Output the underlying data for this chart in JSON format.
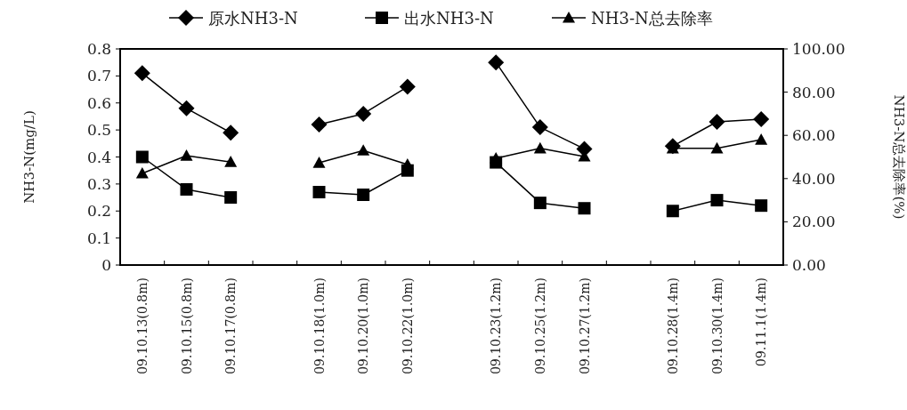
{
  "chart_data": {
    "type": "line",
    "categories": [
      "09.10.13(0.8m)",
      "09.10.15(0.8m)",
      "09.10.17(0.8m)",
      null,
      "09.10.18(1.0m)",
      "09.10.20(1.0m)",
      "09.10.22(1.0m)",
      null,
      "09.10.23(1.2m)",
      "09.10.25(1.2m)",
      "09.10.27(1.2m)",
      null,
      "09.10.28(1.4m)",
      "09.10.30(1.4m)",
      "09.11.1(1.4m)"
    ],
    "series": [
      {
        "name": "原水NH3-N",
        "color": "#000000",
        "marker": "diamond",
        "values": [
          0.71,
          0.58,
          0.49,
          null,
          0.52,
          0.56,
          0.66,
          null,
          0.75,
          0.51,
          0.43,
          null,
          0.44,
          0.53,
          0.54
        ]
      },
      {
        "name": "出水NH3-N",
        "color": "#000000",
        "marker": "square",
        "values": [
          0.4,
          0.28,
          0.25,
          null,
          0.27,
          0.26,
          0.35,
          null,
          0.38,
          0.23,
          0.21,
          null,
          0.2,
          0.24,
          0.22
        ]
      },
      {
        "name": "NH3-N总去除率",
        "color": "#000000",
        "marker": "triangle",
        "axis": "y2",
        "values": [
          42.4,
          50.6,
          47.7,
          null,
          47.3,
          53,
          46.5,
          null,
          49.4,
          54,
          50.2,
          null,
          54,
          54,
          58
        ]
      }
    ],
    "ylabel": "NH3-N(mg/L)",
    "y2label": "NH3-N总去除率(%)",
    "ylim": [
      0,
      0.8
    ],
    "yticks": [
      0,
      0.1,
      0.2,
      0.3,
      0.4,
      0.5,
      0.6,
      0.7,
      0.8
    ],
    "y2lim": [
      0,
      100
    ],
    "y2ticks": [
      {
        "value": 0,
        "label": "0.00"
      },
      {
        "value": 20,
        "label": "20.00"
      },
      {
        "value": 40,
        "label": "40.00"
      },
      {
        "value": 60,
        "label": "60.00"
      },
      {
        "value": 80,
        "label": "80.00"
      },
      {
        "value": 100,
        "label": "100.00"
      }
    ],
    "legend": "top"
  }
}
